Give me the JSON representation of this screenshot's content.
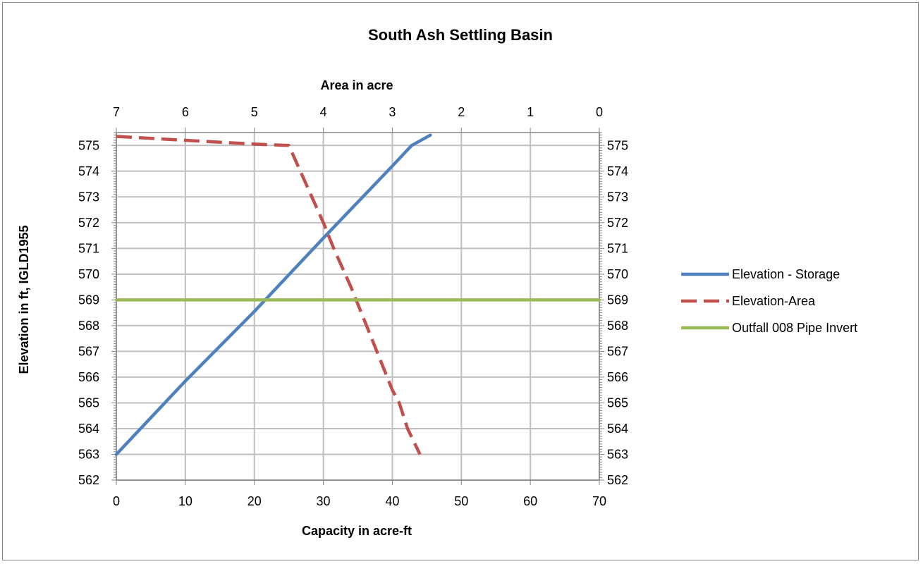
{
  "chart_data": {
    "type": "line",
    "title": "South Ash Settling Basin",
    "xlabel": "Capacity in acre-ft",
    "x2label": "Area in acre",
    "ylabel": "Elevation in ft, IGLD1955",
    "xlim": [
      0,
      70
    ],
    "x2lim": [
      7,
      0
    ],
    "ylim": [
      562,
      575.5
    ],
    "x_ticks": [
      "0",
      "10",
      "20",
      "30",
      "40",
      "50",
      "60",
      "70"
    ],
    "x2_ticks": [
      "7",
      "6",
      "5",
      "4",
      "3",
      "2",
      "1",
      "0"
    ],
    "y_ticks": [
      "562",
      "563",
      "564",
      "565",
      "566",
      "567",
      "568",
      "569",
      "570",
      "571",
      "572",
      "573",
      "574",
      "575"
    ],
    "y2_ticks": [
      "562",
      "563",
      "564",
      "565",
      "566",
      "567",
      "568",
      "569",
      "570",
      "571",
      "572",
      "573",
      "574",
      "575"
    ],
    "grid": true,
    "legend_position": "right",
    "series": [
      {
        "name": "Elevation - Storage",
        "axis": "bottom",
        "color": "#4f81bd",
        "style": "solid",
        "points": [
          [
            0,
            563
          ],
          [
            10,
            565.85
          ],
          [
            20,
            568.55
          ],
          [
            30,
            571.4
          ],
          [
            40,
            574.2
          ],
          [
            42.8,
            575.0
          ],
          [
            45.5,
            575.4
          ]
        ]
      },
      {
        "name": "Elevation-Area",
        "axis": "top",
        "color": "#c0504d",
        "style": "dashed",
        "points": [
          [
            7,
            575.35
          ],
          [
            6,
            575.2
          ],
          [
            5,
            575.05
          ],
          [
            4.5,
            575.0
          ],
          [
            4.0,
            572.0
          ],
          [
            3.85,
            571.0
          ],
          [
            3.6,
            569.5
          ],
          [
            3.3,
            567.5
          ],
          [
            3.0,
            565.5
          ],
          [
            2.9,
            565.0
          ],
          [
            2.78,
            564.0
          ],
          [
            2.6,
            563.0
          ]
        ]
      },
      {
        "name": "Outfall 008 Pipe Invert",
        "axis": "bottom",
        "color": "#9bbb59",
        "style": "solid",
        "points": [
          [
            0,
            569
          ],
          [
            70,
            569
          ]
        ]
      }
    ]
  }
}
